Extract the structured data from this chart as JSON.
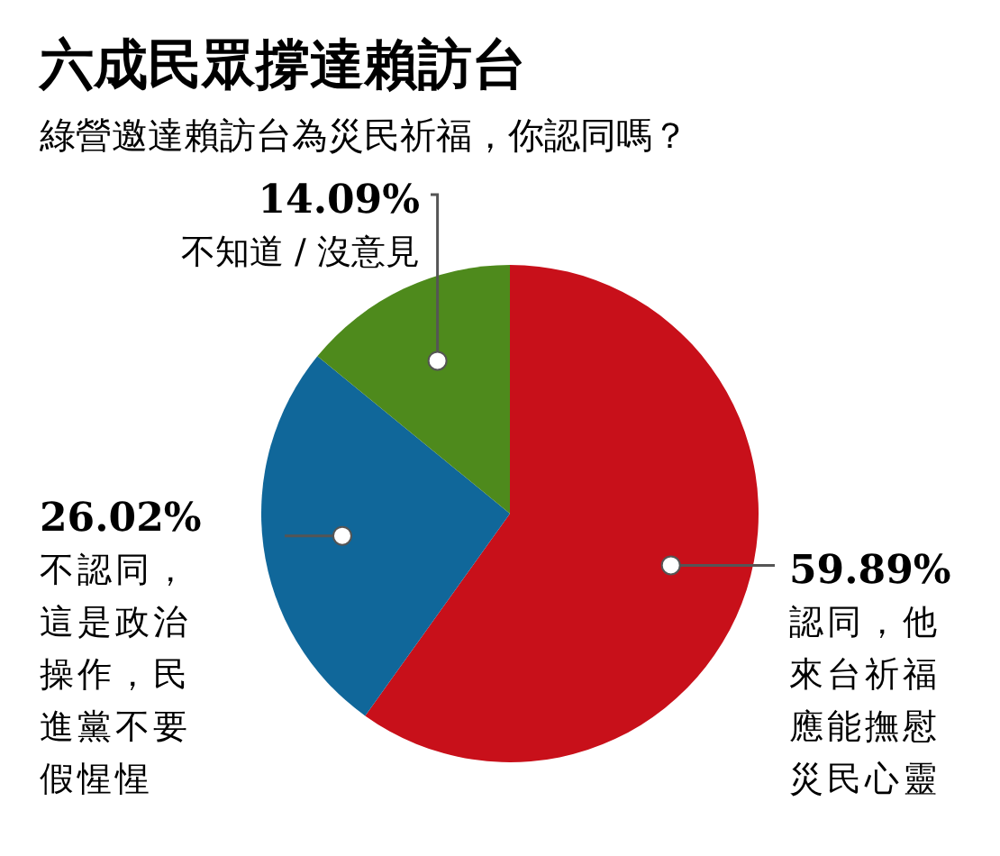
{
  "chart_data": {
    "type": "pie",
    "title": "六成民眾撐達賴訪台",
    "subtitle": "綠營邀達賴訪台為災民祈福，你認同嗎？",
    "categories": [
      "認同，他來台祈福應能撫慰災民心靈",
      "不認同，這是政治操作，民進黨不要假惺惺",
      "不知道 / 沒意見"
    ],
    "values": [
      59.89,
      26.02,
      14.09
    ],
    "colors": [
      "#c8101a",
      "#10679a",
      "#4e8a1c"
    ],
    "value_labels": [
      "59.89%",
      "26.02%",
      "14.09%"
    ]
  }
}
